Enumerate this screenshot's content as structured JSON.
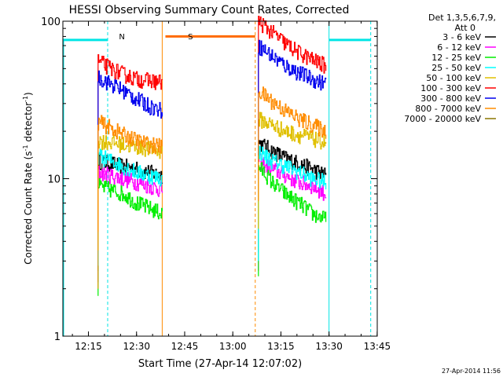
{
  "chart_data": {
    "type": "line",
    "title": "HESSI Observing Summary Count Rates, Corrected",
    "xlabel": "Start Time (27-Apr-14 12:07:02)",
    "ylabel": "Corrected Count Rate (s⁻¹ detector⁻¹)",
    "ylabel_main": "Corrected Count Rate (s",
    "ylabel_sup1": "-1",
    "ylabel_mid": " detector",
    "ylabel_sup2": "-1",
    "ylabel_end": ")",
    "yscale": "log",
    "ylim": [
      1,
      100
    ],
    "xlim_minutes": [
      0,
      98
    ],
    "x_ticks": [
      "12:15",
      "12:30",
      "12:45",
      "13:00",
      "13:15",
      "13:30",
      "13:45"
    ],
    "y_ticks": [
      "1",
      "10",
      "100"
    ],
    "legend_header_line1": "Det 1,3,5,6,7,9,",
    "legend_header_line2": "Att 0",
    "legend_position": "right, outside plot",
    "timestamp": "27-Apr-2014 11:56",
    "markers": [
      {
        "label": "N",
        "minute": 16.5,
        "color": "#00e5e5"
      },
      {
        "label": "S",
        "minute": 38.0,
        "color": "#ff8c00"
      }
    ],
    "series": [
      {
        "name": "3 - 6 keV",
        "color": "#000000",
        "segments": [
          {
            "start": "12:18",
            "end": "12:38",
            "values": [
              13,
              12.5,
              12,
              11.5,
              11,
              10.5
            ]
          },
          {
            "start": "13:08",
            "end": "13:29",
            "values": [
              17,
              15,
              13.5,
              12.5,
              11.5,
              10.5
            ]
          }
        ]
      },
      {
        "name": "6 - 12 keV",
        "color": "#ff00ff",
        "segments": [
          {
            "start": "12:18",
            "end": "12:38",
            "values": [
              11,
              10.5,
              10,
              9.5,
              9,
              8.5
            ]
          },
          {
            "start": "13:08",
            "end": "13:29",
            "values": [
              13,
              11.5,
              10.5,
              9.5,
              9,
              8
            ]
          }
        ]
      },
      {
        "name": "12 - 25 keV",
        "color": "#00ee00",
        "segments": [
          {
            "start": "12:18",
            "end": "12:38",
            "values": [
              9,
              8.5,
              8,
              7,
              6.5,
              6
            ]
          },
          {
            "start": "13:08",
            "end": "13:29",
            "values": [
              12,
              9.5,
              8,
              7,
              6,
              5.5
            ]
          }
        ]
      },
      {
        "name": "25 - 50 keV",
        "color": "#00ffff",
        "segments": [
          {
            "start": "12:18",
            "end": "12:38",
            "values": [
              14,
              13,
              12,
              11,
              10.5,
              10
            ]
          },
          {
            "start": "13:08",
            "end": "13:29",
            "values": [
              15,
              13,
              12,
              11,
              10,
              9.5
            ]
          }
        ]
      },
      {
        "name": "50 - 100 keV",
        "color": "#e0c000",
        "segments": [
          {
            "start": "12:18",
            "end": "12:38",
            "values": [
              17.5,
              17,
              16.5,
              16,
              15.5,
              15
            ]
          },
          {
            "start": "13:08",
            "end": "13:29",
            "values": [
              24,
              22,
              20,
              19,
              18,
              17
            ]
          }
        ]
      },
      {
        "name": "100 - 300 keV",
        "color": "#ff0000",
        "segments": [
          {
            "start": "12:18",
            "end": "12:38",
            "values": [
              56,
              50,
              46,
              43,
              42,
              41
            ]
          },
          {
            "start": "13:08",
            "end": "13:29",
            "values": [
              100,
              85,
              72,
              63,
              57,
              52
            ]
          }
        ]
      },
      {
        "name": "300 - 800 keV",
        "color": "#0000ee",
        "segments": [
          {
            "start": "12:18",
            "end": "12:38",
            "values": [
              44,
              40,
              36,
              32,
              29,
              27
            ]
          },
          {
            "start": "13:08",
            "end": "13:29",
            "values": [
              70,
              60,
              52,
              47,
              43,
              40
            ]
          }
        ]
      },
      {
        "name": "800 - 7000 keV",
        "color": "#ff8c00",
        "segments": [
          {
            "start": "12:18",
            "end": "12:38",
            "values": [
              23,
              21,
              19,
              17.5,
              16.5,
              16
            ]
          },
          {
            "start": "13:08",
            "end": "13:29",
            "values": [
              36,
              31,
              27,
              24,
              22,
              20
            ]
          }
        ]
      },
      {
        "name": "7000 - 20000 keV",
        "color": "#8b7500",
        "segments": []
      }
    ]
  }
}
